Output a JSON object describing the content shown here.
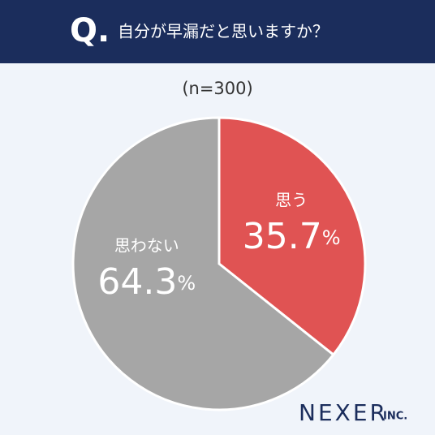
{
  "chart_data": {
    "type": "pie",
    "title_prefix": "Q.",
    "title": "自分が早漏だと思いますか？",
    "subtitle": "(n=300)",
    "categories": [
      "思う",
      "思わない"
    ],
    "values": [
      35.7,
      64.3
    ],
    "value_labels": [
      "35.7%",
      "64.3%"
    ],
    "colors": [
      "#e05353",
      "#a6a6a6"
    ]
  },
  "logo": {
    "name": "NEXER",
    "suffix": "INC."
  }
}
